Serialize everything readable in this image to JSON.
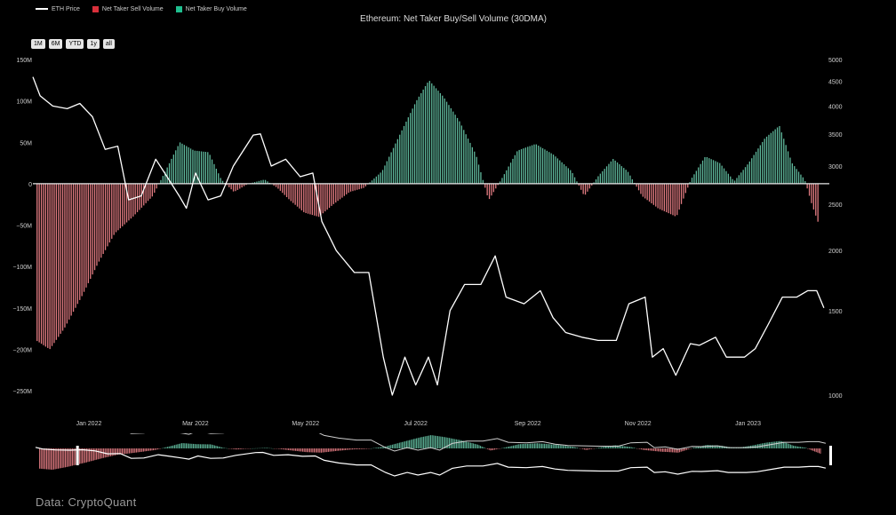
{
  "legend": [
    {
      "label": "ETH Price",
      "kind": "line",
      "color": "#ffffff"
    },
    {
      "label": "Net Taker Sell Volume",
      "kind": "square",
      "color": "#d9303b"
    },
    {
      "label": "Net Taker Buy Volume",
      "kind": "square",
      "color": "#1fbf8f"
    }
  ],
  "title": "Ethereum: Net Taker Buy/Sell Volume (30DMA)",
  "range_buttons": [
    "1M",
    "6M",
    "YTD",
    "1y",
    "all"
  ],
  "source": "Data: CryptoQuant",
  "chart_data": {
    "type": "bar",
    "title": "Ethereum: Net Taker Buy/Sell Volume (30DMA)",
    "x_start": "2021-12-01",
    "x_end": "2023-02-15",
    "x_ticks": [
      "Jan 2022",
      "Mar 2022",
      "May 2022",
      "Jul 2022",
      "Sep 2022",
      "Nov 2022",
      "Jan 2023"
    ],
    "x_tick_dates": [
      "2022-01-01",
      "2022-03-01",
      "2022-05-01",
      "2022-07-01",
      "2022-09-01",
      "2022-11-01",
      "2023-01-01"
    ],
    "y_left_ticks": [
      150,
      100,
      50,
      0,
      -50,
      -100,
      -150,
      -200,
      -250
    ],
    "y_left_tick_labels": [
      "150M",
      "100M",
      "50M",
      "0",
      "−50M",
      "−100M",
      "−150M",
      "−200M",
      "−250M"
    ],
    "y_left_range": [
      -250,
      150
    ],
    "y_left_unit": "M",
    "y_right_ticks": [
      5000,
      4500,
      4000,
      3500,
      3000,
      2500,
      2000,
      1500,
      1000
    ],
    "y_right_scale": "log",
    "y_right_range": [
      1000,
      5000
    ],
    "net_volume_series": {
      "colors": {
        "positive": "#5fb89c",
        "negative": "#e07a80"
      },
      "points": [
        [
          "2021-12-03",
          -190
        ],
        [
          "2021-12-10",
          -200
        ],
        [
          "2021-12-18",
          -175
        ],
        [
          "2021-12-28",
          -135
        ],
        [
          "2022-01-06",
          -95
        ],
        [
          "2022-01-15",
          -60
        ],
        [
          "2022-01-25",
          -40
        ],
        [
          "2022-02-05",
          -15
        ],
        [
          "2022-02-12",
          15
        ],
        [
          "2022-02-20",
          50
        ],
        [
          "2022-02-28",
          40
        ],
        [
          "2022-03-08",
          38
        ],
        [
          "2022-03-15",
          5
        ],
        [
          "2022-03-22",
          -10
        ],
        [
          "2022-03-30",
          0
        ],
        [
          "2022-04-08",
          5
        ],
        [
          "2022-04-15",
          -5
        ],
        [
          "2022-04-22",
          -20
        ],
        [
          "2022-04-30",
          -35
        ],
        [
          "2022-05-08",
          -40
        ],
        [
          "2022-05-16",
          -25
        ],
        [
          "2022-05-25",
          -10
        ],
        [
          "2022-06-02",
          -5
        ],
        [
          "2022-06-12",
          15
        ],
        [
          "2022-06-22",
          60
        ],
        [
          "2022-07-01",
          100
        ],
        [
          "2022-07-08",
          125
        ],
        [
          "2022-07-16",
          105
        ],
        [
          "2022-07-25",
          75
        ],
        [
          "2022-08-03",
          35
        ],
        [
          "2022-08-10",
          -20
        ],
        [
          "2022-08-17",
          5
        ],
        [
          "2022-08-26",
          40
        ],
        [
          "2022-09-05",
          48
        ],
        [
          "2022-09-15",
          35
        ],
        [
          "2022-09-25",
          15
        ],
        [
          "2022-10-02",
          -15
        ],
        [
          "2022-10-10",
          10
        ],
        [
          "2022-10-18",
          30
        ],
        [
          "2022-10-26",
          15
        ],
        [
          "2022-11-03",
          -15
        ],
        [
          "2022-11-12",
          -30
        ],
        [
          "2022-11-22",
          -40
        ],
        [
          "2022-11-30",
          5
        ],
        [
          "2022-12-08",
          33
        ],
        [
          "2022-12-16",
          25
        ],
        [
          "2022-12-24",
          3
        ],
        [
          "2023-01-01",
          25
        ],
        [
          "2023-01-10",
          55
        ],
        [
          "2023-01-18",
          70
        ],
        [
          "2023-01-25",
          25
        ],
        [
          "2023-02-01",
          5
        ],
        [
          "2023-02-05",
          -25
        ],
        [
          "2023-02-09",
          -50
        ]
      ]
    },
    "eth_price_series": {
      "name": "ETH Price",
      "color": "#ffffff",
      "points": [
        [
          "2021-12-01",
          4600
        ],
        [
          "2021-12-05",
          4200
        ],
        [
          "2021-12-12",
          4000
        ],
        [
          "2021-12-20",
          3950
        ],
        [
          "2021-12-27",
          4050
        ],
        [
          "2022-01-03",
          3800
        ],
        [
          "2022-01-10",
          3250
        ],
        [
          "2022-01-17",
          3300
        ],
        [
          "2022-01-23",
          2550
        ],
        [
          "2022-01-30",
          2600
        ],
        [
          "2022-02-07",
          3100
        ],
        [
          "2022-02-12",
          2900
        ],
        [
          "2022-02-20",
          2600
        ],
        [
          "2022-02-24",
          2450
        ],
        [
          "2022-03-01",
          2900
        ],
        [
          "2022-03-08",
          2550
        ],
        [
          "2022-03-15",
          2600
        ],
        [
          "2022-03-22",
          3000
        ],
        [
          "2022-04-02",
          3480
        ],
        [
          "2022-04-06",
          3500
        ],
        [
          "2022-04-12",
          3000
        ],
        [
          "2022-04-20",
          3100
        ],
        [
          "2022-04-28",
          2850
        ],
        [
          "2022-05-05",
          2900
        ],
        [
          "2022-05-10",
          2300
        ],
        [
          "2022-05-18",
          2000
        ],
        [
          "2022-05-28",
          1800
        ],
        [
          "2022-06-05",
          1800
        ],
        [
          "2022-06-13",
          1200
        ],
        [
          "2022-06-18",
          1000
        ],
        [
          "2022-06-25",
          1200
        ],
        [
          "2022-07-01",
          1050
        ],
        [
          "2022-07-08",
          1200
        ],
        [
          "2022-07-13",
          1050
        ],
        [
          "2022-07-20",
          1500
        ],
        [
          "2022-07-28",
          1700
        ],
        [
          "2022-08-06",
          1700
        ],
        [
          "2022-08-14",
          1950
        ],
        [
          "2022-08-20",
          1600
        ],
        [
          "2022-08-30",
          1550
        ],
        [
          "2022-09-08",
          1650
        ],
        [
          "2022-09-15",
          1450
        ],
        [
          "2022-09-22",
          1350
        ],
        [
          "2022-10-01",
          1320
        ],
        [
          "2022-10-10",
          1300
        ],
        [
          "2022-10-20",
          1300
        ],
        [
          "2022-10-27",
          1550
        ],
        [
          "2022-11-05",
          1600
        ],
        [
          "2022-11-09",
          1200
        ],
        [
          "2022-11-15",
          1250
        ],
        [
          "2022-11-22",
          1100
        ],
        [
          "2022-11-30",
          1280
        ],
        [
          "2022-12-05",
          1270
        ],
        [
          "2022-12-14",
          1320
        ],
        [
          "2022-12-20",
          1200
        ],
        [
          "2022-12-30",
          1200
        ],
        [
          "2023-01-05",
          1250
        ],
        [
          "2023-01-12",
          1400
        ],
        [
          "2023-01-20",
          1600
        ],
        [
          "2023-01-28",
          1600
        ],
        [
          "2023-02-03",
          1650
        ],
        [
          "2023-02-08",
          1650
        ],
        [
          "2023-02-12",
          1520
        ]
      ]
    }
  }
}
